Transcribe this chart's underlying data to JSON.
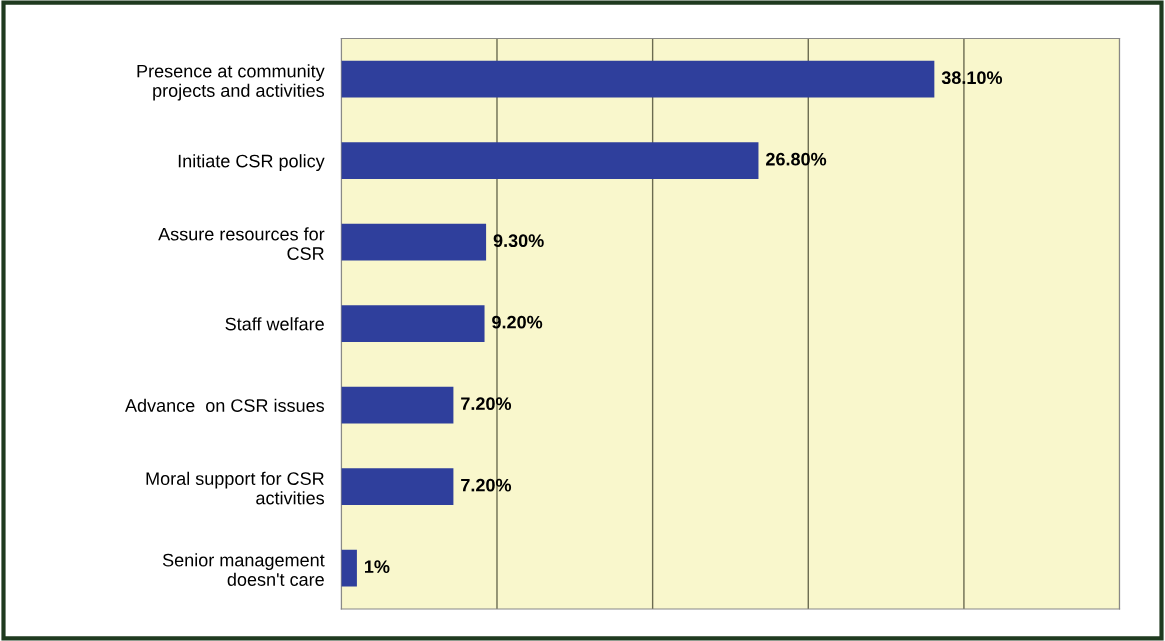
{
  "chart_data": {
    "type": "bar",
    "orientation": "horizontal",
    "categories": [
      "Presence at community\nprojects and activities",
      "Initiate CSR policy",
      "Assure resources for\nCSR",
      "Staff welfare",
      "Advance  on CSR issues",
      "Moral support for CSR\nactivities",
      "Senior management\ndoesn't care"
    ],
    "values": [
      38.1,
      26.8,
      9.3,
      9.2,
      7.2,
      7.2,
      1
    ],
    "value_labels": [
      "38.10%",
      "26.80%",
      "9.30%",
      "9.20%",
      "7.20%",
      "7.20%",
      "1%"
    ],
    "color": "#2f3f9c",
    "xlim": [
      0,
      50
    ],
    "xticks": [
      {
        "value": 0,
        "label": null
      },
      {
        "value": 10,
        "label": null
      },
      {
        "value": 20,
        "label": null
      },
      {
        "value": 30,
        "label": null
      },
      {
        "value": 40,
        "label": null
      },
      {
        "value": 50,
        "label": null
      }
    ],
    "tick_labels": "y",
    "grid": "x",
    "legend": false
  }
}
